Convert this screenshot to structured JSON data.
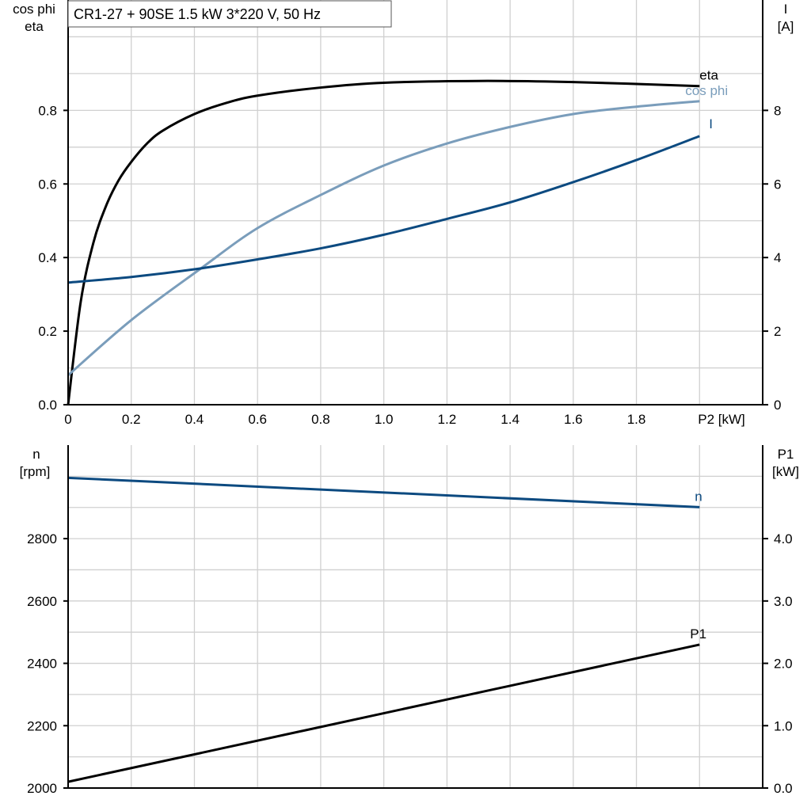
{
  "title": "CR1-27 + 90SE   1.5 kW   3*220 V, 50 Hz",
  "colors": {
    "eta": "#000000",
    "cos_phi": "#7a9dbb",
    "I": "#0c4a80",
    "n": "#0c4a80",
    "P1": "#000000",
    "grid": "#d0d0d0"
  },
  "chart_data": [
    {
      "type": "line",
      "xlabel": "P2 [kW]",
      "ylabel_left": [
        "cos phi",
        "eta"
      ],
      "ylabel_right": [
        "I",
        "[A]"
      ],
      "xlim": [
        0,
        2.2
      ],
      "ylim_left": [
        0,
        1.1
      ],
      "ylim_right": [
        0,
        11
      ],
      "x_ticks": [
        "0",
        "0.2",
        "0.4",
        "0.6",
        "0.8",
        "1.0",
        "1.2",
        "1.4",
        "1.6",
        "1.8"
      ],
      "y_left_ticks": [
        "0.0",
        "0.2",
        "0.4",
        "0.6",
        "0.8"
      ],
      "y_right_ticks": [
        "0",
        "2",
        "4",
        "6",
        "8"
      ],
      "grid": true,
      "series": [
        {
          "name": "eta",
          "axis": "left",
          "x": [
            0,
            0.04,
            0.08,
            0.12,
            0.16,
            0.2,
            0.25,
            0.3,
            0.4,
            0.5,
            0.6,
            0.8,
            1.0,
            1.3,
            1.6,
            2.0
          ],
          "y": [
            0,
            0.28,
            0.44,
            0.54,
            0.61,
            0.66,
            0.71,
            0.745,
            0.79,
            0.82,
            0.84,
            0.862,
            0.875,
            0.88,
            0.877,
            0.866
          ]
        },
        {
          "name": "cos phi",
          "axis": "left",
          "x": [
            0,
            0.2,
            0.42,
            0.6,
            0.8,
            1.0,
            1.2,
            1.4,
            1.6,
            1.8,
            2.0
          ],
          "y": [
            0.08,
            0.23,
            0.37,
            0.48,
            0.57,
            0.65,
            0.71,
            0.755,
            0.79,
            0.81,
            0.825
          ]
        },
        {
          "name": "I",
          "axis": "right",
          "x": [
            0,
            0.2,
            0.4,
            0.6,
            0.8,
            1.0,
            1.2,
            1.4,
            1.6,
            1.8,
            2.0
          ],
          "y": [
            3.32,
            3.47,
            3.68,
            3.95,
            4.25,
            4.62,
            5.05,
            5.5,
            6.05,
            6.65,
            7.3
          ]
        }
      ]
    },
    {
      "type": "line",
      "ylabel_left": [
        "n",
        "[rpm]"
      ],
      "ylabel_right": [
        "P1",
        "[kW]"
      ],
      "xlim": [
        0,
        2.2
      ],
      "ylim_left": [
        2000,
        3100
      ],
      "ylim_right": [
        0,
        5.5
      ],
      "y_left_ticks": [
        "2000",
        "2200",
        "2400",
        "2600",
        "2800"
      ],
      "y_right_ticks": [
        "0.0",
        "1.0",
        "2.0",
        "3.0",
        "4.0"
      ],
      "grid": true,
      "series": [
        {
          "name": "n",
          "axis": "left",
          "x": [
            0,
            2.0
          ],
          "y": [
            2995,
            2901
          ]
        },
        {
          "name": "P1",
          "axis": "right",
          "x": [
            0,
            2.0
          ],
          "y": [
            0.1,
            2.3
          ]
        }
      ]
    }
  ]
}
